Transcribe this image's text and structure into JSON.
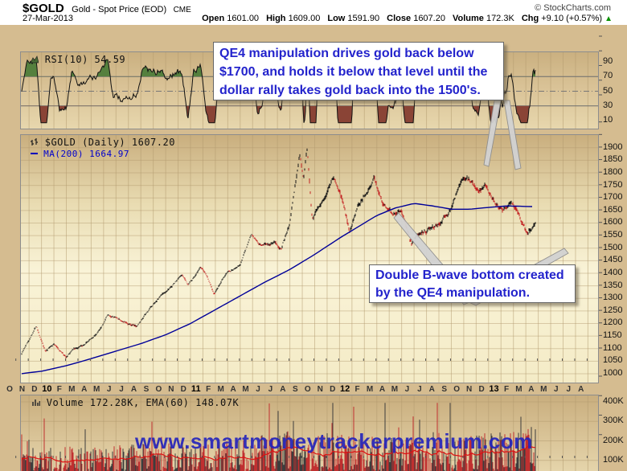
{
  "header": {
    "symbol": "$GOLD",
    "description": "Gold - Spot Price (EOD)",
    "exchange": "CME",
    "copyright": "© StockCharts.com",
    "date": "27-Mar-2013",
    "quote": [
      {
        "label": "Open",
        "value": "1601.00"
      },
      {
        "label": "High",
        "value": "1609.00"
      },
      {
        "label": "Low",
        "value": "1591.90"
      },
      {
        "label": "Close",
        "value": "1607.20"
      },
      {
        "label": "Volume",
        "value": "172.3K"
      },
      {
        "label": "Chg",
        "value": "+9.10 (+0.57%)"
      }
    ],
    "chg_direction": "up",
    "up_color": "#089000"
  },
  "rsi_panel": {
    "label": "RSI(10) 54.59"
  },
  "main_panel": {
    "label": "$GOLD (Daily) 1607.20",
    "ma_label": "MA(200) 1664.97"
  },
  "volume_panel": {
    "label": "Volume 172.28K, EMA(60) 148.07K"
  },
  "annotations": {
    "qe4": "QE4 manipulation drives gold back below $1700, and holds it below that level until the dollar rally takes gold back into the 1500's.",
    "bwave": "Double B-wave bottom created by the QE4 manipulation."
  },
  "watermark": "www.smartmoneytrackerpremium.com",
  "chart_data": {
    "type": "candlestick",
    "symbol": "$GOLD",
    "timeframe": "daily",
    "data_start": "Oct-2009",
    "data_end": "27-Mar-2013",
    "month_labels": [
      "O",
      "N",
      "D",
      "10",
      "F",
      "M",
      "A",
      "M",
      "J",
      "J",
      "A",
      "S",
      "O",
      "N",
      "D",
      "11",
      "F",
      "M",
      "A",
      "M",
      "J",
      "J",
      "A",
      "S",
      "O",
      "N",
      "D",
      "12",
      "F",
      "M",
      "A",
      "M",
      "J",
      "J",
      "A",
      "S",
      "O",
      "N",
      "D",
      "13",
      "F",
      "M",
      "A",
      "M",
      "J",
      "J",
      "A"
    ],
    "price_axis": {
      "min": 1000,
      "max": 1900,
      "step": 50,
      "ticks": [
        1900,
        1850,
        1800,
        1750,
        1700,
        1650,
        1600,
        1550,
        1500,
        1450,
        1400,
        1350,
        1300,
        1250,
        1200,
        1150,
        1100,
        1050,
        1000
      ]
    },
    "rsi_axis": {
      "ticks": [
        90,
        70,
        50,
        30,
        10
      ],
      "overbought": 70,
      "midline": 50,
      "oversold": 30
    },
    "volume_axis": {
      "ticks": [
        400,
        300,
        200,
        100
      ],
      "unit": "K"
    },
    "last_values": {
      "open": 1601.0,
      "high": 1609.0,
      "low": 1591.9,
      "close": 1607.2,
      "volume_k": 172.3,
      "chg": "+9.10",
      "chg_pct": "+0.57%",
      "rsi10": 54.59,
      "ma200": 1664.97,
      "volume_ema60_k": 148.07
    },
    "price_anchors_month_price": [
      [
        0,
        1045
      ],
      [
        1,
        1135
      ],
      [
        1.6,
        1195
      ],
      [
        2.3,
        1088
      ],
      [
        3,
        1120
      ],
      [
        4,
        1066
      ],
      [
        4.6,
        1100
      ],
      [
        5.5,
        1110
      ],
      [
        6.5,
        1160
      ],
      [
        7.3,
        1232
      ],
      [
        8,
        1222
      ],
      [
        8.8,
        1200
      ],
      [
        9.6,
        1185
      ],
      [
        10.5,
        1240
      ],
      [
        11.5,
        1305
      ],
      [
        12.5,
        1350
      ],
      [
        13.3,
        1395
      ],
      [
        13.8,
        1355
      ],
      [
        14.8,
        1420
      ],
      [
        15.3,
        1390
      ],
      [
        15.9,
        1320
      ],
      [
        17,
        1405
      ],
      [
        18,
        1430
      ],
      [
        18.9,
        1555
      ],
      [
        19.5,
        1510
      ],
      [
        20.5,
        1525
      ],
      [
        21.3,
        1505
      ],
      [
        22,
        1615
      ],
      [
        22.8,
        1880
      ],
      [
        23.1,
        1790
      ],
      [
        23.4,
        1890
      ],
      [
        23.8,
        1615
      ],
      [
        24.3,
        1670
      ],
      [
        25,
        1720
      ],
      [
        25.5,
        1790
      ],
      [
        26.2,
        1690
      ],
      [
        26.8,
        1560
      ],
      [
        27.5,
        1665
      ],
      [
        28.3,
        1745
      ],
      [
        28.8,
        1780
      ],
      [
        29.5,
        1680
      ],
      [
        30.3,
        1645
      ],
      [
        31,
        1660
      ],
      [
        31.8,
        1535
      ],
      [
        32.5,
        1565
      ],
      [
        33.3,
        1580
      ],
      [
        34.2,
        1605
      ],
      [
        35,
        1660
      ],
      [
        35.8,
        1775
      ],
      [
        36.5,
        1770
      ],
      [
        37.2,
        1715
      ],
      [
        37.7,
        1750
      ],
      [
        38.5,
        1690
      ],
      [
        39.2,
        1655
      ],
      [
        39.7,
        1688
      ],
      [
        40.3,
        1660
      ],
      [
        41.1,
        1560
      ],
      [
        41.5,
        1590
      ],
      [
        41.9,
        1600
      ]
    ],
    "ma200_anchors_month_price": [
      [
        0,
        998
      ],
      [
        2,
        1010
      ],
      [
        4,
        1032
      ],
      [
        6,
        1060
      ],
      [
        8,
        1090
      ],
      [
        10,
        1120
      ],
      [
        12,
        1155
      ],
      [
        14,
        1200
      ],
      [
        16,
        1255
      ],
      [
        18,
        1310
      ],
      [
        20,
        1365
      ],
      [
        22,
        1415
      ],
      [
        24,
        1475
      ],
      [
        26,
        1540
      ],
      [
        27.5,
        1585
      ],
      [
        29,
        1630
      ],
      [
        30.5,
        1660
      ],
      [
        32,
        1678
      ],
      [
        33.5,
        1668
      ],
      [
        35,
        1655
      ],
      [
        36.5,
        1655
      ],
      [
        38,
        1662
      ],
      [
        39.5,
        1668
      ],
      [
        41,
        1666
      ],
      [
        41.9,
        1665
      ]
    ],
    "volume_anchors_month_k": [
      [
        0,
        100
      ],
      [
        6,
        105
      ],
      [
        12,
        115
      ],
      [
        18,
        125
      ],
      [
        22,
        160
      ],
      [
        24,
        140
      ],
      [
        27,
        140
      ],
      [
        30,
        135
      ],
      [
        33,
        120
      ],
      [
        36,
        140
      ],
      [
        39,
        150
      ],
      [
        41.9,
        170
      ]
    ]
  }
}
